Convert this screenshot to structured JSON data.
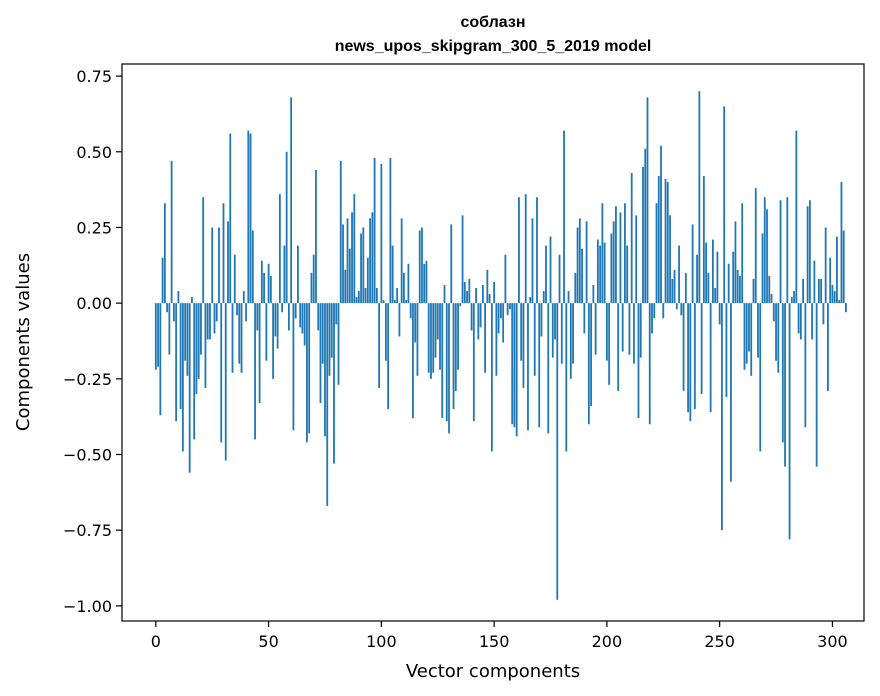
{
  "chart_data": {
    "type": "bar",
    "title_line1": "соблазн",
    "title_line2": "news_upos_skipgram_300_5_2019 model",
    "xlabel": "Vector components",
    "ylabel": "Components values",
    "xlim": [
      -15,
      314
    ],
    "ylim": [
      -1.05,
      0.79
    ],
    "xticks": [
      0,
      50,
      100,
      150,
      200,
      250,
      300
    ],
    "yticks": [
      0.75,
      0.5,
      0.25,
      0.0,
      -0.25,
      -0.5,
      -0.75,
      -1.0
    ],
    "ytick_labels": [
      "0.75",
      "0.50",
      "0.25",
      "0.00",
      "−0.25",
      "−0.50",
      "−0.75",
      "−1.00"
    ],
    "bar_color": "#1f77b4",
    "values": [
      -0.22,
      -0.21,
      -0.37,
      0.15,
      0.33,
      -0.03,
      -0.17,
      0.47,
      -0.06,
      -0.39,
      0.04,
      -0.35,
      -0.49,
      -0.19,
      -0.24,
      -0.56,
      0.02,
      -0.45,
      -0.3,
      -0.25,
      -0.17,
      0.35,
      -0.28,
      -0.12,
      -0.12,
      0.25,
      -0.1,
      -0.06,
      0.25,
      -0.46,
      0.33,
      -0.52,
      0.27,
      0.56,
      -0.23,
      0.16,
      -0.04,
      -0.2,
      -0.23,
      0.04,
      -0.06,
      0.57,
      0.56,
      0.24,
      -0.45,
      -0.09,
      -0.33,
      0.14,
      0.1,
      -0.19,
      0.13,
      0.09,
      -0.25,
      -0.11,
      -0.15,
      0.36,
      -0.03,
      0.19,
      0.5,
      -0.09,
      0.68,
      -0.42,
      -0.05,
      0.19,
      -0.08,
      -0.1,
      -0.14,
      -0.46,
      -0.43,
      0.1,
      0.16,
      0.44,
      -0.09,
      -0.33,
      -0.2,
      -0.44,
      -0.67,
      -0.24,
      -0.18,
      -0.53,
      -0.07,
      -0.27,
      0.47,
      0.26,
      0.11,
      0.28,
      0.18,
      0.3,
      0.36,
      0.02,
      0.04,
      0.23,
      0.25,
      0.05,
      0.15,
      0.28,
      0.3,
      0.48,
      0.05,
      -0.28,
      0.46,
      0.01,
      -0.19,
      -0.35,
      0.48,
      0.19,
      0.01,
      0.05,
      -0.11,
      0.28,
      0.1,
      0.01,
      0.13,
      -0.05,
      -0.38,
      -0.13,
      -0.24,
      0.24,
      0.25,
      0.13,
      0.14,
      -0.23,
      -0.25,
      -0.23,
      -0.18,
      -0.12,
      -0.22,
      -0.38,
      0.06,
      -0.39,
      -0.43,
      0.26,
      -0.35,
      -0.29,
      -0.22,
      -0.01,
      0.29,
      0.07,
      0.04,
      0.08,
      -0.09,
      -0.39,
      0.05,
      -0.12,
      -0.08,
      0.06,
      -0.23,
      0.11,
      0.03,
      -0.49,
      0.07,
      -0.24,
      -0.1,
      -0.05,
      -0.13,
      0.16,
      -0.04,
      -0.02,
      -0.4,
      -0.41,
      -0.44,
      0.35,
      -0.19,
      -0.28,
      0.36,
      -0.42,
      0.02,
      0.28,
      -0.24,
      0.35,
      -0.41,
      -0.11,
      0.04,
      0.19,
      -0.43,
      0.22,
      -0.18,
      -0.12,
      -0.98,
      0.16,
      -0.2,
      0.57,
      -0.49,
      0.04,
      -0.25,
      -0.2,
      0.1,
      0.25,
      0.28,
      0.18,
      -0.1,
      0.27,
      -0.4,
      -0.34,
      0.06,
      -0.17,
      0.21,
      0.19,
      0.33,
      0.2,
      -0.19,
      -0.27,
      0.23,
      0.27,
      0.32,
      -0.29,
      0.3,
      -0.16,
      0.33,
      0.19,
      -0.17,
      0.43,
      -0.2,
      0.29,
      -0.38,
      -0.18,
      0.45,
      0.51,
      0.68,
      -0.4,
      -0.1,
      -0.05,
      0.33,
      0.42,
      0.52,
      -0.05,
      0.41,
      0.4,
      0.29,
      0.08,
      0.11,
      -0.02,
      0.19,
      -0.04,
      -0.29,
      0.1,
      -0.36,
      -0.39,
      0.26,
      -0.35,
      0.16,
      0.7,
      -0.3,
      0.42,
      0.2,
      0.1,
      -0.36,
      0.21,
      0.05,
      0.17,
      -0.07,
      -0.75,
      0.65,
      -0.31,
      0.13,
      -0.59,
      0.17,
      0.27,
      0.11,
      0.09,
      0.33,
      -0.22,
      -0.2,
      -0.16,
      -0.24,
      0.08,
      0.38,
      -0.18,
      -0.49,
      0.23,
      0.35,
      0.31,
      0.09,
      0.03,
      -0.06,
      -0.19,
      -0.23,
      0.34,
      -0.46,
      -0.54,
      0.35,
      -0.78,
      0.02,
      0.04,
      0.57,
      -0.1,
      -0.12,
      0.08,
      -0.41,
      0.32,
      0.34,
      -0.12,
      0.14,
      -0.54,
      0.08,
      0.08,
      -0.07,
      0.25,
      -0.29,
      0.15,
      0.06,
      0.04,
      0.22,
      0.01,
      0.4,
      0.24,
      -0.03
    ]
  }
}
